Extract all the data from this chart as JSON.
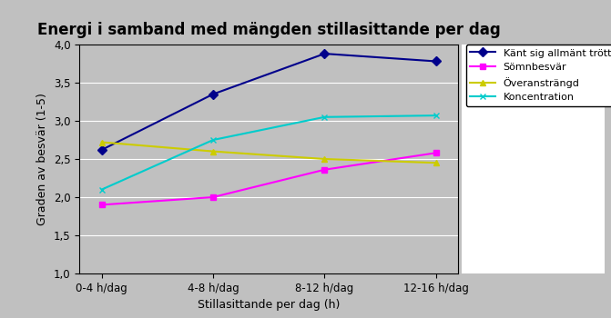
{
  "title": "Energi i samband med mängden stillasittande per dag",
  "xlabel": "Stillasittande per dag (h)",
  "ylabel": "Graden av besvär (1-5)",
  "x_labels": [
    "0-4 h/dag",
    "4-8 h/dag",
    "8-12 h/dag",
    "12-16 h/dag"
  ],
  "x_positions": [
    0,
    1,
    2,
    3
  ],
  "ylim": [
    1.0,
    4.0
  ],
  "yticks": [
    1.0,
    1.5,
    2.0,
    2.5,
    3.0,
    3.5,
    4.0
  ],
  "series": [
    {
      "label": "Känt sig allmänt trött",
      "color": "#00008B",
      "marker": "D",
      "markersize": 5,
      "values": [
        2.62,
        3.35,
        3.88,
        3.78
      ]
    },
    {
      "label": "Sömnbesvär",
      "color": "#FF00FF",
      "marker": "s",
      "markersize": 5,
      "values": [
        1.9,
        2.0,
        2.36,
        2.58
      ]
    },
    {
      "label": "Överansträngd",
      "color": "#CCCC00",
      "marker": "^",
      "markersize": 5,
      "values": [
        2.72,
        2.6,
        2.5,
        2.45
      ]
    },
    {
      "label": "Koncentration",
      "color": "#00CCCC",
      "marker": "x",
      "markersize": 5,
      "values": [
        2.1,
        2.75,
        3.05,
        3.07
      ]
    }
  ],
  "plot_bg": "#C0C0C0",
  "fig_bg": "#C0C0C0",
  "legend_bg": "#FFFFFF",
  "legend_fontsize": 8,
  "title_fontsize": 12,
  "axis_label_fontsize": 9,
  "tick_fontsize": 8.5
}
